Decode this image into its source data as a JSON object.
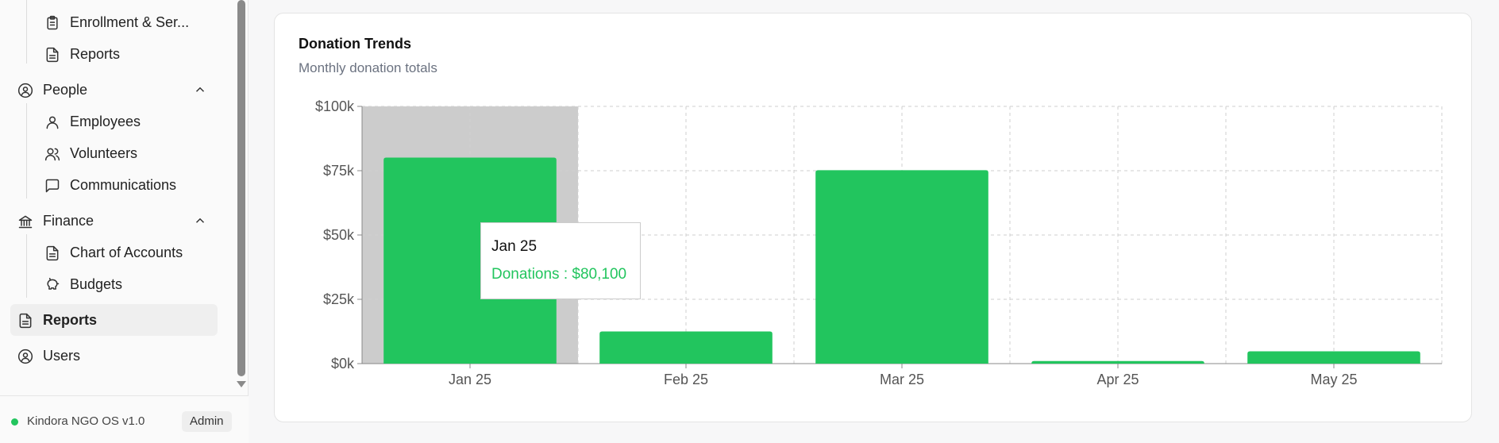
{
  "sidebar": {
    "items": [
      {
        "label": "Enrollment & Ser...",
        "icon": "clipboard-icon",
        "level": "sub"
      },
      {
        "label": "Reports",
        "icon": "file-text-icon",
        "level": "sub"
      },
      {
        "label": "People",
        "icon": "user-circle-icon",
        "level": "group",
        "expanded": true
      },
      {
        "label": "Employees",
        "icon": "user-icon",
        "level": "sub"
      },
      {
        "label": "Volunteers",
        "icon": "users-icon",
        "level": "sub"
      },
      {
        "label": "Communications",
        "icon": "message-square-icon",
        "level": "sub"
      },
      {
        "label": "Finance",
        "icon": "bank-icon",
        "level": "group",
        "expanded": true
      },
      {
        "label": "Chart of Accounts",
        "icon": "file-text-icon",
        "level": "sub"
      },
      {
        "label": "Budgets",
        "icon": "piggy-bank-icon",
        "level": "sub"
      },
      {
        "label": "Reports",
        "icon": "file-text-icon",
        "level": "top",
        "active": true
      },
      {
        "label": "Users",
        "icon": "user-circle-icon",
        "level": "top"
      }
    ]
  },
  "footer": {
    "app_version": "Kindora NGO OS v1.0",
    "role_badge": "Admin",
    "status_color": "#22c55e"
  },
  "card": {
    "title": "Donation Trends",
    "subtitle": "Monthly donation totals"
  },
  "tooltip": {
    "label": "Jan 25",
    "value_text": "Donations : $80,100"
  },
  "chart_data": {
    "type": "bar",
    "categories": [
      "Jan 25",
      "Feb 25",
      "Mar 25",
      "Apr 25",
      "May 25"
    ],
    "series": [
      {
        "name": "Donations",
        "values": [
          80100,
          12500,
          75200,
          1000,
          4800
        ],
        "color": "#22c55e"
      }
    ],
    "y_ticks": [
      0,
      25000,
      50000,
      75000,
      100000
    ],
    "y_tick_labels": [
      "$0k",
      "$25k",
      "$50k",
      "$75k",
      "$100k"
    ],
    "ylim": [
      0,
      100000
    ],
    "grid": true,
    "highlighted_category": "Jan 25"
  }
}
